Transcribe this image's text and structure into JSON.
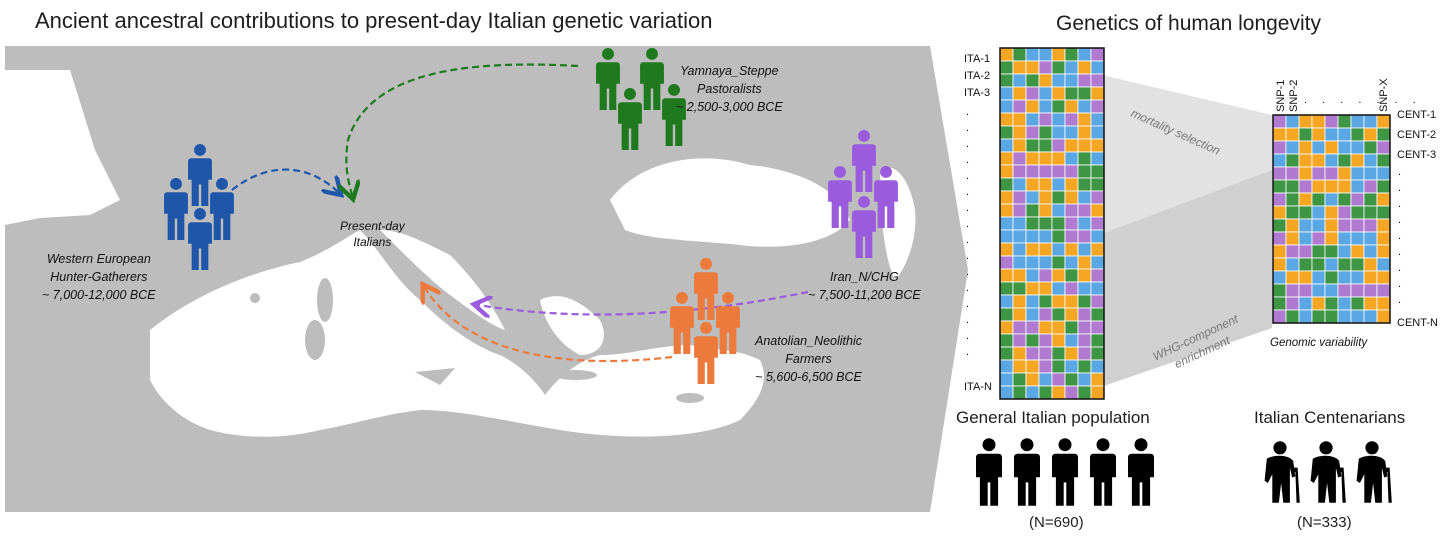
{
  "left_panel": {
    "title": "Ancient ancestral contributions to present-day Italian genetic variation",
    "groups": [
      {
        "id": "whg",
        "name_lines": [
          "Western European",
          "Hunter-Gatherers"
        ],
        "date": "~ 7,000-12,000 BCE",
        "color": "#1f56a8"
      },
      {
        "id": "steppe",
        "name_lines": [
          "Yamnaya_Steppe",
          "Pastoralists"
        ],
        "date": "~ 2,500-3,000 BCE",
        "color": "#1f7a1f"
      },
      {
        "id": "iran",
        "name_lines": [
          "Iran_N/CHG"
        ],
        "date": "~ 7,500-11,200 BCE",
        "color": "#9a5cdc"
      },
      {
        "id": "anatolia",
        "name_lines": [
          "Anatolian_Neolithic",
          "Farmers"
        ],
        "date": "~ 5,600-6,500 BCE",
        "color": "#ec7a3c"
      }
    ],
    "target_lines": [
      "Present-day",
      "Italians"
    ]
  },
  "right_panel": {
    "title": "Genetics of human longevity",
    "general_rows": [
      "ITA-1",
      "ITA-2",
      "ITA-3",
      "ITA-N"
    ],
    "cent_rows": [
      "CENT-1",
      "CENT-2",
      "CENT-3",
      "CENT-N"
    ],
    "snp_labels": [
      "SNP-1",
      "SNP-2",
      "SNP-X"
    ],
    "band_top": "mortality selection",
    "band_bottom_lines": [
      "WHG-component",
      "enrichment"
    ],
    "cent_caption": "Genomic variability",
    "general_label": "General Italian population",
    "general_count": "(N=690)",
    "cent_label": "Italian Centenarians",
    "cent_count": "(N=333)",
    "palette": [
      "#5aa7e3",
      "#f5a623",
      "#3e9645",
      "#b07ad0"
    ]
  }
}
